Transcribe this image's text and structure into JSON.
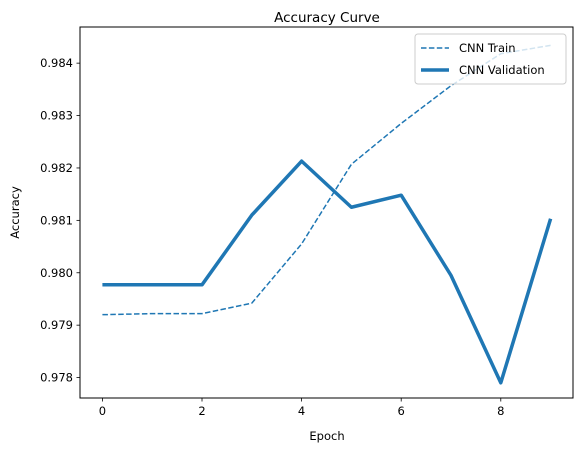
{
  "chart_data": {
    "type": "line",
    "title": "Accuracy Curve",
    "xlabel": "Epoch",
    "ylabel": "Accuracy",
    "x": [
      0,
      1,
      2,
      3,
      4,
      5,
      6,
      7,
      8,
      9
    ],
    "xlim": [
      -0.45,
      9.45
    ],
    "ylim": [
      0.97761,
      0.98469
    ],
    "xticks": [
      0,
      2,
      4,
      6,
      8
    ],
    "yticks": [
      0.978,
      0.979,
      0.98,
      0.981,
      0.982,
      0.983,
      0.984
    ],
    "xtick_labels": [
      "0",
      "2",
      "4",
      "6",
      "8"
    ],
    "ytick_labels": [
      "0.978",
      "0.979",
      "0.980",
      "0.981",
      "0.982",
      "0.983",
      "0.984"
    ],
    "grid": false,
    "legend_position": "top-right",
    "series": [
      {
        "name": "CNN Train",
        "style": "dashed",
        "color": "#1f77b4",
        "values": [
          0.9792,
          0.97922,
          0.97922,
          0.97942,
          0.98055,
          0.98207,
          0.98285,
          0.98357,
          0.98418,
          0.98434
        ]
      },
      {
        "name": "CNN Validation",
        "style": "solid-thick",
        "color": "#1f77b4",
        "values": [
          0.97977,
          0.97977,
          0.97977,
          0.9811,
          0.98213,
          0.98125,
          0.98148,
          0.97995,
          0.9779,
          0.98103
        ]
      }
    ]
  }
}
